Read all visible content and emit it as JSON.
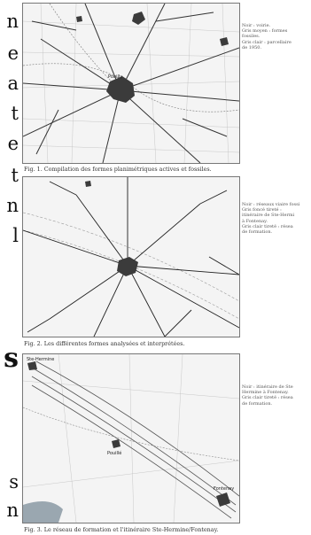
{
  "left_text": {
    "fragments": [
      "n",
      "e",
      "a",
      "t",
      "e",
      "t",
      "n",
      "l",
      "s",
      "s",
      "n"
    ]
  },
  "figures": [
    {
      "caption": "Fig. 1.  Compilation des formes planimétriques actives et fossiles.",
      "legend": [
        "Noir : voirie.",
        "Gris moyen : formes",
        "fossiles.",
        "Gris clair : parcellaire",
        "de 1950."
      ],
      "place_labels": [
        "Pouilly"
      ]
    },
    {
      "caption": "Fig. 2.  Les différentes formes analysées et interprétées.",
      "legend": [
        "Noir : réseaux viaire fossi",
        "Gris foncé tireté :",
        "itinéraire de Ste-Hermi",
        "à Fontenay.",
        "Gris clair tireté : résea",
        "de formation."
      ],
      "place_labels": []
    },
    {
      "caption": "Fig. 3.  Le réseau de formation et l'itinéraire Ste-Hermine/Fontenay.",
      "legend": [
        "Noir : itinéraire de Ste",
        "Hermine à Fontenay.",
        "Gris clair tireté : résea",
        "de formation."
      ],
      "place_labels": [
        "Ste-Hermine",
        "Pouillé",
        "Fontenay"
      ]
    }
  ],
  "colors": {
    "ink": "#111111",
    "map_bg": "#f4f4f4",
    "roads": "#333333",
    "fossil": "#8a8a8a",
    "water": "#9aa7b0"
  }
}
